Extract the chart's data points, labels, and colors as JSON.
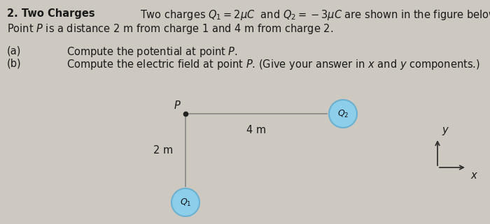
{
  "bg_color": "#cdc8c0",
  "text_color": "#1a1a1a",
  "title_bold": "2. Two Charges",
  "title_rest": "  Two charges ",
  "title_math": "$Q_1 = 2\\mu C$  and $Q_2 = -3\\mu C$",
  "title_end": " are shown in the figure below.",
  "line2": "Point $P$ is a distance 2 m from charge 1 and 4 m from charge 2.",
  "part_a_label": "(a)",
  "part_a_text": "Compute the potential at point $P$.",
  "part_b_label": "(b)",
  "part_b_text": "Compute the electric field at point $P$. (Give your answer in $x$ and $y$ components.)",
  "P_label": "P",
  "Q1_label": "$Q_1$",
  "Q2_label": "$Q_2$",
  "dist_horiz": "4 m",
  "dist_vert": "2 m",
  "circle_color": "#8dcfea",
  "circle_edge": "#6ab0d0",
  "line_color": "#888888",
  "axes_color": "#333333",
  "x_label": "x",
  "y_label": "y",
  "fig_width": 7.0,
  "fig_height": 3.21,
  "dpi": 100
}
